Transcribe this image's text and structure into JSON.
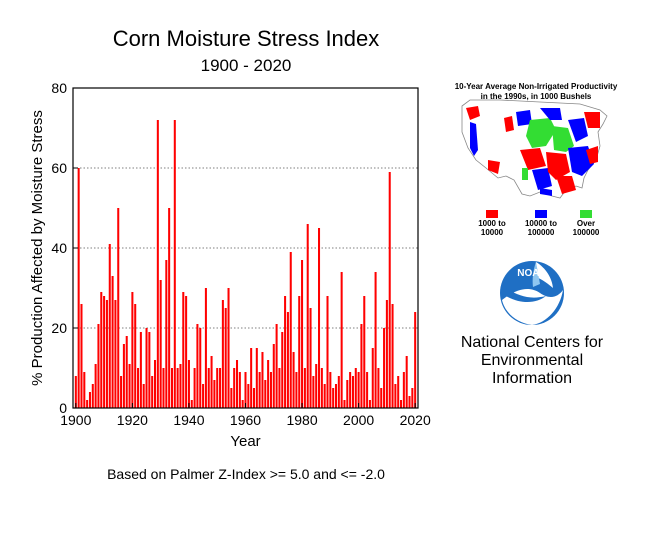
{
  "chart_data": {
    "type": "bar",
    "title": "Corn Moisture Stress Index",
    "subtitle": "1900 - 2020",
    "xlabel": "Year",
    "ylabel": "% Production Affected by Moisture Stress",
    "footnote": "Based on Palmer Z-Index >= 5.0 and <= -2.0",
    "xlim": [
      1899,
      2021
    ],
    "ylim": [
      0,
      80
    ],
    "xticks": [
      "1900",
      "1920",
      "1940",
      "1960",
      "1980",
      "2000",
      "2020"
    ],
    "yticks": [
      "0",
      "20",
      "40",
      "60",
      "80"
    ],
    "grid": "horizontal-dotted",
    "bar_color": "#ff0000",
    "x": [
      1900,
      1901,
      1902,
      1903,
      1904,
      1905,
      1906,
      1907,
      1908,
      1909,
      1910,
      1911,
      1912,
      1913,
      1914,
      1915,
      1916,
      1917,
      1918,
      1919,
      1920,
      1921,
      1922,
      1923,
      1924,
      1925,
      1926,
      1927,
      1928,
      1929,
      1930,
      1931,
      1932,
      1933,
      1934,
      1935,
      1936,
      1937,
      1938,
      1939,
      1940,
      1941,
      1942,
      1943,
      1944,
      1945,
      1946,
      1947,
      1948,
      1949,
      1950,
      1951,
      1952,
      1953,
      1954,
      1955,
      1956,
      1957,
      1958,
      1959,
      1960,
      1961,
      1962,
      1963,
      1964,
      1965,
      1966,
      1967,
      1968,
      1969,
      1970,
      1971,
      1972,
      1973,
      1974,
      1975,
      1976,
      1977,
      1978,
      1979,
      1980,
      1981,
      1982,
      1983,
      1984,
      1985,
      1986,
      1987,
      1988,
      1989,
      1990,
      1991,
      1992,
      1993,
      1994,
      1995,
      1996,
      1997,
      1998,
      1999,
      2000,
      2001,
      2002,
      2003,
      2004,
      2005,
      2006,
      2007,
      2008,
      2009,
      2010,
      2011,
      2012,
      2013,
      2014,
      2015,
      2016,
      2017,
      2018,
      2019,
      2020
    ],
    "values": [
      8,
      60,
      26,
      9,
      2,
      4,
      6,
      11,
      21,
      29,
      28,
      27,
      41,
      33,
      27,
      50,
      8,
      16,
      18,
      11,
      29,
      26,
      10,
      19,
      6,
      20,
      19,
      8,
      12,
      72,
      32,
      10,
      37,
      50,
      10,
      72,
      10,
      11,
      29,
      28,
      12,
      2,
      10,
      21,
      20,
      6,
      30,
      10,
      13,
      7,
      10,
      10,
      27,
      25,
      30,
      5,
      10,
      12,
      9,
      2,
      9,
      6,
      15,
      5,
      15,
      9,
      14,
      7,
      12,
      9,
      16,
      21,
      10,
      19,
      28,
      24,
      39,
      14,
      9,
      28,
      37,
      10,
      46,
      25,
      8,
      11,
      45,
      10,
      6,
      28,
      9,
      5,
      6,
      8,
      34,
      2,
      7,
      9,
      8,
      10,
      9,
      21,
      28,
      9,
      2,
      15,
      34,
      10,
      5,
      20,
      27,
      59,
      26,
      6,
      8,
      2,
      9,
      13,
      3,
      5,
      24
    ]
  },
  "inset": {
    "title_line1": "10-Year Average Non-Irrigated Productivity",
    "title_line2": "in the 1990s, in 1000 Bushels",
    "map_icon": "us-county-productivity-map",
    "legend": [
      {
        "label_line1": "1000 to",
        "label_line2": "10000",
        "color": "#ff0000"
      },
      {
        "label_line1": "10000 to",
        "label_line2": "100000",
        "color": "#0000ff"
      },
      {
        "label_line1": "Over",
        "label_line2": "100000",
        "color": "#33dd33"
      }
    ]
  },
  "logo": {
    "text": "NOAA",
    "icon": "noaa-logo-icon"
  },
  "org": {
    "line1": "National Centers for",
    "line2": "Environmental",
    "line3": "Information"
  }
}
